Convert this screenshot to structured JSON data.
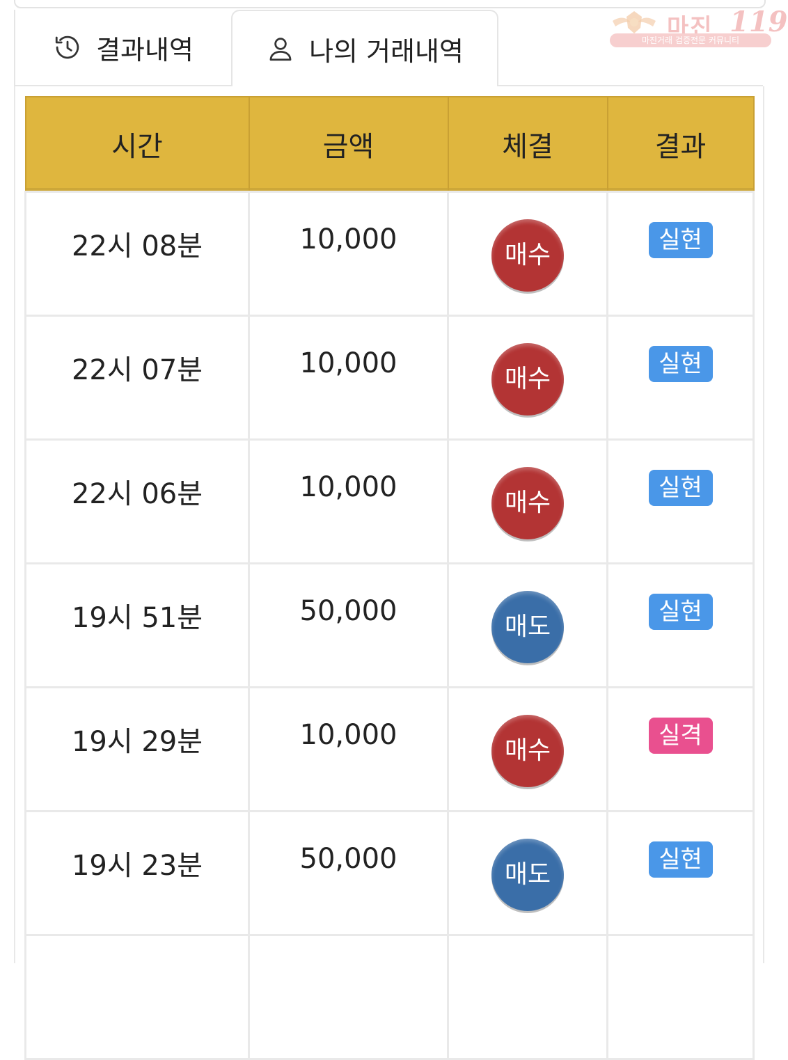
{
  "watermark": {
    "title": "마진",
    "number": "119",
    "subtitle": "마진거래 검증전문 커뮤니티"
  },
  "tabs": [
    {
      "label": "결과내역",
      "icon": "history-icon",
      "active": false
    },
    {
      "label": "나의 거래내역",
      "icon": "user-icon",
      "active": true
    }
  ],
  "table": {
    "headers": [
      "시간",
      "금액",
      "체결",
      "결과"
    ],
    "rows": [
      {
        "time": "22시 08분",
        "amount": "10,000",
        "trade": "매수",
        "result": "실현"
      },
      {
        "time": "22시 07분",
        "amount": "10,000",
        "trade": "매수",
        "result": "실현"
      },
      {
        "time": "22시 06분",
        "amount": "10,000",
        "trade": "매수",
        "result": "실현"
      },
      {
        "time": "19시 51분",
        "amount": "50,000",
        "trade": "매도",
        "result": "실현"
      },
      {
        "time": "19시 29분",
        "amount": "10,000",
        "trade": "매수",
        "result": "실격"
      },
      {
        "time": "19시 23분",
        "amount": "50,000",
        "trade": "매도",
        "result": "실현"
      }
    ]
  },
  "colors": {
    "header_bg": "#dfb63e",
    "buy": "#b33434",
    "sell": "#3a6ea8",
    "realized": "#4a97e8",
    "failed": "#e9508f"
  }
}
